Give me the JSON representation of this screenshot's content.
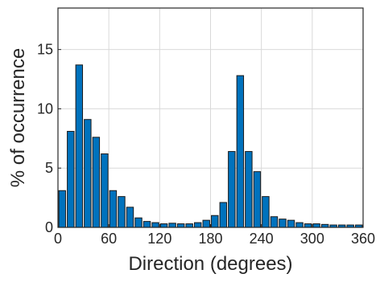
{
  "chart_data": {
    "type": "bar",
    "xlabel": "Direction (degrees)",
    "ylabel": "% of occurrence",
    "xlim": [
      0,
      360
    ],
    "ylim": [
      0,
      18.5
    ],
    "xticks": [
      0,
      60,
      120,
      180,
      240,
      300,
      360
    ],
    "yticks": [
      0,
      5,
      10,
      15
    ],
    "grid": true,
    "bar_color": "#0072bd",
    "bin_width": 10,
    "bin_centers": [
      5,
      15,
      25,
      35,
      45,
      55,
      65,
      75,
      85,
      95,
      105,
      115,
      125,
      135,
      145,
      155,
      165,
      175,
      185,
      195,
      205,
      215,
      225,
      235,
      245,
      255,
      265,
      275,
      285,
      295,
      305,
      315,
      325,
      335,
      345,
      355
    ],
    "values": [
      3.1,
      8.1,
      13.7,
      9.1,
      7.6,
      6.2,
      3.1,
      2.6,
      1.7,
      0.8,
      0.5,
      0.4,
      0.3,
      0.35,
      0.3,
      0.3,
      0.4,
      0.6,
      1.0,
      2.1,
      6.4,
      12.8,
      6.4,
      4.7,
      2.6,
      0.9,
      0.7,
      0.6,
      0.4,
      0.3,
      0.3,
      0.25,
      0.2,
      0.2,
      0.2,
      0.2
    ]
  }
}
